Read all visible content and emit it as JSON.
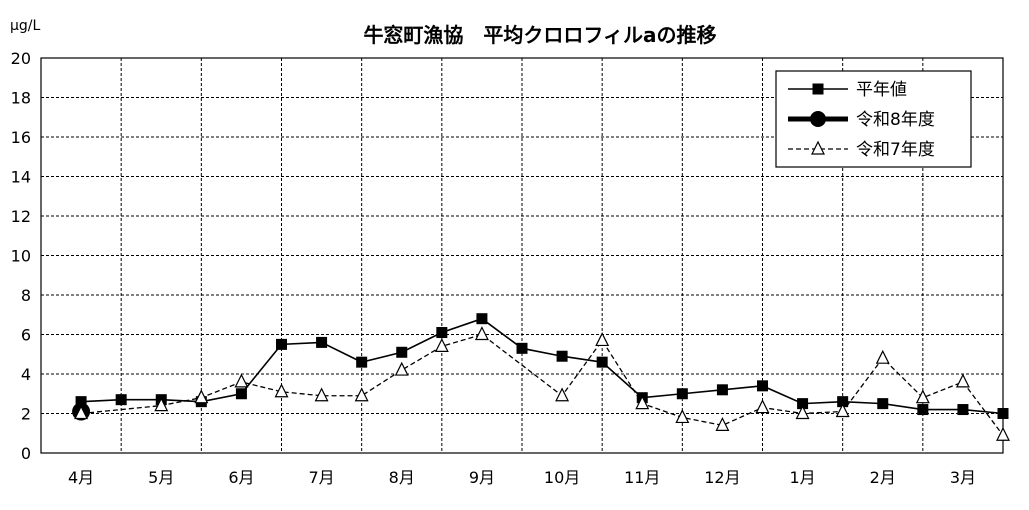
{
  "chart_data": {
    "type": "line",
    "title": "牛窓町漁協　平均クロロフィルaの推移",
    "ylabel": "μg/L",
    "xlabel": "",
    "ylim": [
      0,
      20
    ],
    "y_ticks": [
      "0",
      "2",
      "4",
      "6",
      "8",
      "10",
      "12",
      "14",
      "16",
      "18",
      "20"
    ],
    "categories": [
      "4月",
      "5月",
      "6月",
      "7月",
      "8月",
      "9月",
      "10月",
      "11月",
      "12月",
      "1月",
      "2月",
      "3月"
    ],
    "grid": true,
    "legend_position": "top-right",
    "series": [
      {
        "name": "平年値",
        "marker": "square",
        "line_style": "solid",
        "color": "#000000",
        "x": [
          0.0,
          0.5,
          1.0,
          1.5,
          2.0,
          2.5,
          3.0,
          3.5,
          4.0,
          4.5,
          5.0,
          5.5,
          6.0,
          6.5,
          7.0,
          7.5,
          8.0,
          8.5,
          9.0,
          9.5,
          10.0,
          10.5,
          11.0,
          11.5
        ],
        "values": [
          2.6,
          2.7,
          2.7,
          2.6,
          3.0,
          5.5,
          5.6,
          4.6,
          5.1,
          6.1,
          6.8,
          5.3,
          4.9,
          4.6,
          2.8,
          3.0,
          3.2,
          3.4,
          2.5,
          2.6,
          2.5,
          2.2,
          2.2,
          2.0
        ]
      },
      {
        "name": "令和8年度",
        "marker": "circle",
        "line_style": "bold",
        "color": "#000000",
        "x": [
          0.0
        ],
        "values": [
          2.1
        ]
      },
      {
        "name": "令和7年度",
        "marker": "triangle",
        "line_style": "dashed",
        "color": "#000000",
        "x": [
          0.0,
          1.0,
          1.5,
          2.0,
          2.5,
          3.0,
          3.5,
          4.0,
          4.5,
          5.0,
          6.0,
          6.5,
          7.0,
          7.5,
          8.0,
          8.5,
          9.0,
          9.5,
          10.0,
          10.5,
          11.0,
          11.5
        ],
        "values": [
          2.0,
          2.4,
          2.8,
          3.6,
          3.1,
          2.9,
          2.9,
          4.2,
          5.4,
          6.0,
          2.9,
          5.7,
          2.5,
          1.8,
          1.4,
          2.3,
          2.0,
          2.1,
          4.8,
          2.8,
          3.6,
          0.9
        ]
      }
    ]
  }
}
